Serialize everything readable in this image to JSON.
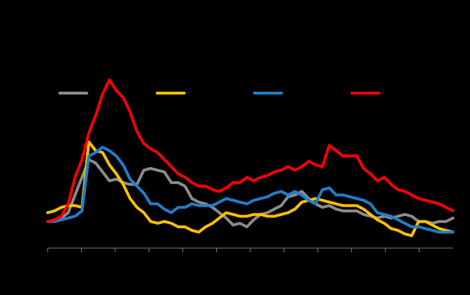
{
  "chart_data": {
    "type": "line",
    "title": "",
    "xlabel": "",
    "ylabel": "",
    "grid": false,
    "legend_position": "top",
    "x": [
      1,
      2,
      3,
      4,
      5,
      6,
      7,
      8,
      9,
      10,
      11,
      12,
      13,
      14,
      15,
      16,
      17,
      18,
      19,
      20,
      21,
      22,
      23,
      24,
      25,
      26,
      27,
      28,
      29,
      30,
      31,
      32,
      33,
      34,
      35,
      36,
      37,
      38,
      39,
      40,
      41,
      42,
      43,
      44,
      45,
      46,
      47,
      48,
      49,
      50,
      51,
      52,
      53,
      54,
      55,
      56,
      57,
      58,
      59,
      60
    ],
    "ylim": [
      0,
      100
    ],
    "series": [
      {
        "name": "",
        "color": "#8c8c8c",
        "values": [
          15,
          15,
          17,
          20,
          30,
          40,
          50,
          48,
          43,
          38,
          39,
          37,
          36,
          36,
          44,
          45,
          44,
          43,
          37,
          37,
          35,
          28,
          26,
          25,
          23,
          20,
          17,
          13,
          14,
          12,
          16,
          19,
          20,
          22,
          24,
          29,
          30,
          32,
          28,
          25,
          23,
          24,
          22,
          21,
          21,
          21,
          19,
          18,
          17,
          18,
          17,
          18,
          19,
          18,
          15,
          15,
          14,
          15,
          15,
          17
        ]
      },
      {
        "name": "",
        "color": "#ffc000",
        "values": [
          20,
          21,
          23,
          24,
          24,
          23,
          60,
          55,
          54,
          47,
          42,
          36,
          28,
          23,
          20,
          15,
          14,
          15,
          14,
          12,
          12,
          10,
          9,
          12,
          14,
          17,
          20,
          19,
          18,
          18,
          19,
          19,
          18,
          18,
          19,
          20,
          22,
          26,
          27,
          28,
          27,
          26,
          25,
          24,
          24,
          24,
          22,
          19,
          16,
          14,
          11,
          10,
          8,
          7,
          15,
          15,
          13,
          11,
          10,
          9
        ]
      },
      {
        "name": "",
        "color": "#1f7fca",
        "values": [
          15,
          15,
          16,
          17,
          18,
          21,
          52,
          54,
          57,
          55,
          52,
          47,
          39,
          35,
          31,
          25,
          25,
          22,
          20,
          23,
          23,
          25,
          24,
          24,
          24,
          26,
          28,
          27,
          26,
          25,
          27,
          28,
          29,
          31,
          32,
          30,
          32,
          30,
          27,
          25,
          33,
          34,
          30,
          30,
          29,
          28,
          27,
          25,
          20,
          19,
          18,
          16,
          14,
          12,
          12,
          11,
          10,
          9,
          9,
          9
        ]
      },
      {
        "name": "",
        "color": "#ff0000",
        "values": [
          15,
          16,
          18,
          25,
          40,
          50,
          65,
          75,
          87,
          95,
          89,
          85,
          77,
          66,
          59,
          56,
          54,
          50,
          46,
          42,
          40,
          37,
          35,
          35,
          33,
          32,
          34,
          37,
          37,
          40,
          38,
          40,
          41,
          43,
          44,
          46,
          44,
          46,
          49,
          47,
          46,
          58,
          55,
          52,
          52,
          52,
          45,
          42,
          38,
          40,
          36,
          33,
          32,
          30,
          28,
          27,
          26,
          25,
          23,
          21
        ]
      }
    ],
    "x_ticks": 12
  }
}
